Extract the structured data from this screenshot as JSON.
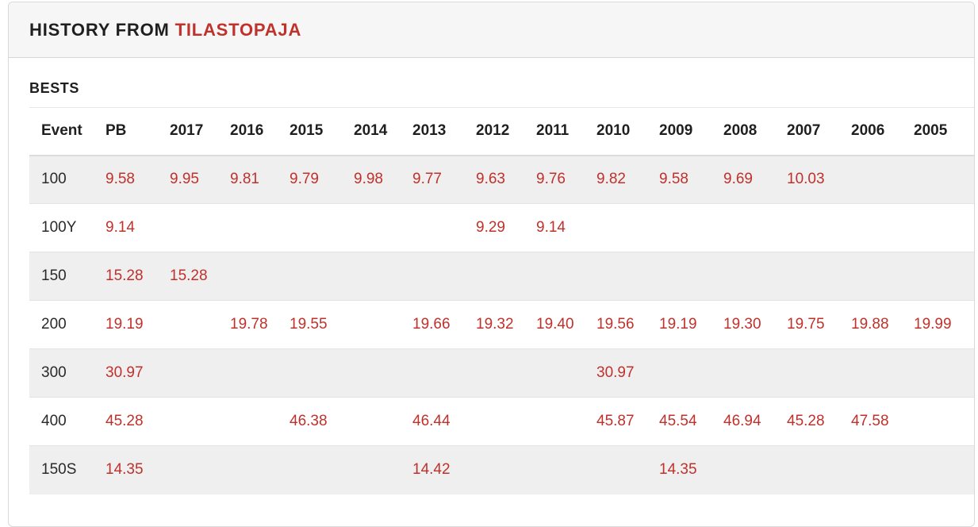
{
  "header": {
    "title_prefix": "HISTORY FROM",
    "title_brand": "TILASTOPAJA"
  },
  "colors": {
    "accent": "#c0312b",
    "header_bg": "#f6f6f6",
    "row_alt_bg": "#efefef"
  },
  "bests": {
    "section_title": "BESTS",
    "columns": [
      "Event",
      "PB",
      "2017",
      "2016",
      "2015",
      "2014",
      "2013",
      "2012",
      "2011",
      "2010",
      "2009",
      "2008",
      "2007",
      "2006",
      "2005"
    ],
    "rows": [
      [
        "100",
        "9.58",
        "9.95",
        "9.81",
        "9.79",
        "9.98",
        "9.77",
        "9.63",
        "9.76",
        "9.82",
        "9.58",
        "9.69",
        "10.03",
        "",
        ""
      ],
      [
        "100Y",
        "9.14",
        "",
        "",
        "",
        "",
        "",
        "9.29",
        "9.14",
        "",
        "",
        "",
        "",
        "",
        ""
      ],
      [
        "150",
        "15.28",
        "15.28",
        "",
        "",
        "",
        "",
        "",
        "",
        "",
        "",
        "",
        "",
        "",
        ""
      ],
      [
        "200",
        "19.19",
        "",
        "19.78",
        "19.55",
        "",
        "19.66",
        "19.32",
        "19.40",
        "19.56",
        "19.19",
        "19.30",
        "19.75",
        "19.88",
        "19.99"
      ],
      [
        "300",
        "30.97",
        "",
        "",
        "",
        "",
        "",
        "",
        "",
        "30.97",
        "",
        "",
        "",
        "",
        ""
      ],
      [
        "400",
        "45.28",
        "",
        "",
        "46.38",
        "",
        "46.44",
        "",
        "",
        "45.87",
        "45.54",
        "46.94",
        "45.28",
        "47.58",
        ""
      ],
      [
        "150S",
        "14.35",
        "",
        "",
        "",
        "",
        "14.42",
        "",
        "",
        "",
        "14.35",
        "",
        "",
        "",
        ""
      ]
    ]
  }
}
